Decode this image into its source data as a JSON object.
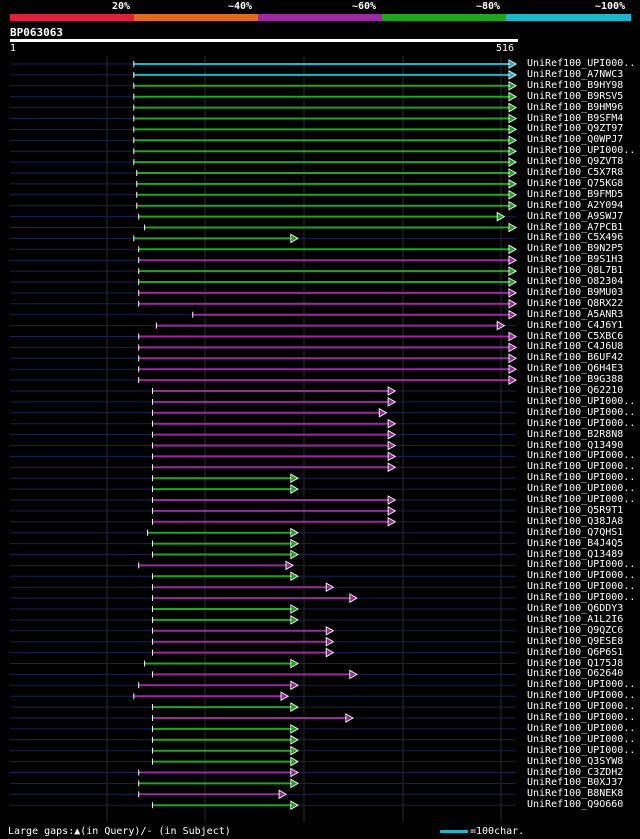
{
  "legend": {
    "labels": [
      "20%",
      "~40%",
      "~60%",
      "~80%",
      "~100%"
    ],
    "colors": [
      "#e0213c",
      "#e06a1e",
      "#9b2aa0",
      "#1fa51f",
      "#23b3cc"
    ]
  },
  "query": {
    "id": "BP063063",
    "start": "1",
    "end": "516",
    "length": 516
  },
  "colors": {
    "cyan": "#23b3cc",
    "green": "#1fa51f",
    "purple": "#9b2aa0",
    "grid": "#2a2a2a",
    "track": "#1b2150",
    "gap_marker": "#ffffff"
  },
  "hits": [
    {
      "label": "UniRef100_UPI000..",
      "color": "cyan",
      "start": 127,
      "end": 516
    },
    {
      "label": "UniRef100_A7NWC3",
      "color": "cyan",
      "start": 127,
      "end": 516
    },
    {
      "label": "UniRef100_B9HY98",
      "color": "green",
      "start": 127,
      "end": 516
    },
    {
      "label": "UniRef100_B9RSV5",
      "color": "green",
      "start": 127,
      "end": 516
    },
    {
      "label": "UniRef100_B9HM96",
      "color": "green",
      "start": 127,
      "end": 516
    },
    {
      "label": "UniRef100_B9SFM4",
      "color": "green",
      "start": 127,
      "end": 516
    },
    {
      "label": "UniRef100_Q9ZT97",
      "color": "green",
      "start": 127,
      "end": 516
    },
    {
      "label": "UniRef100_Q0WPJ7",
      "color": "green",
      "start": 127,
      "end": 516
    },
    {
      "label": "UniRef100_UPI000..",
      "color": "green",
      "start": 127,
      "end": 516
    },
    {
      "label": "UniRef100_Q9ZVT8",
      "color": "green",
      "start": 127,
      "end": 516
    },
    {
      "label": "UniRef100_C5X7R8",
      "color": "green",
      "start": 130,
      "end": 516
    },
    {
      "label": "UniRef100_Q75KG8",
      "color": "green",
      "start": 130,
      "end": 516
    },
    {
      "label": "UniRef100_B9FMD5",
      "color": "green",
      "start": 130,
      "end": 516
    },
    {
      "label": "UniRef100_A2Y094",
      "color": "green",
      "start": 130,
      "end": 516
    },
    {
      "label": "UniRef100_A9SWJ7",
      "color": "green",
      "start": 132,
      "end": 504
    },
    {
      "label": "UniRef100_A7PCB1",
      "color": "green",
      "start": 138,
      "end": 516
    },
    {
      "label": "UniRef100_C5X496",
      "color": "green",
      "start": 127,
      "end": 294
    },
    {
      "label": "UniRef100_B9N2P5",
      "color": "green",
      "start": 132,
      "end": 516
    },
    {
      "label": "UniRef100_B9S1H3",
      "color": "purple",
      "start": 132,
      "end": 516
    },
    {
      "label": "UniRef100_Q8L7B1",
      "color": "green",
      "start": 132,
      "end": 516
    },
    {
      "label": "UniRef100_O82304",
      "color": "green",
      "start": 132,
      "end": 516
    },
    {
      "label": "UniRef100_B9MU03",
      "color": "purple",
      "start": 132,
      "end": 516
    },
    {
      "label": "UniRef100_Q8RX22",
      "color": "purple",
      "start": 132,
      "end": 516
    },
    {
      "label": "UniRef100_A5ANR3",
      "color": "purple",
      "start": 187,
      "end": 516
    },
    {
      "label": "UniRef100_C4J6Y1",
      "color": "purple",
      "start": 150,
      "end": 504
    },
    {
      "label": "UniRef100_C5XBC6",
      "color": "purple",
      "start": 132,
      "end": 516
    },
    {
      "label": "UniRef100_C4J6U8",
      "color": "purple",
      "start": 132,
      "end": 516
    },
    {
      "label": "UniRef100_B6UF42",
      "color": "purple",
      "start": 132,
      "end": 516
    },
    {
      "label": "UniRef100_Q6H4E3",
      "color": "purple",
      "start": 132,
      "end": 516
    },
    {
      "label": "UniRef100_B9G388",
      "color": "purple",
      "start": 132,
      "end": 516
    },
    {
      "label": "UniRef100_Q62210",
      "color": "purple",
      "start": 146,
      "end": 393
    },
    {
      "label": "UniRef100_UPI000..",
      "color": "purple",
      "start": 146,
      "end": 393
    },
    {
      "label": "UniRef100_UPI000..",
      "color": "purple",
      "start": 146,
      "end": 384
    },
    {
      "label": "UniRef100_UPI000..",
      "color": "purple",
      "start": 146,
      "end": 393
    },
    {
      "label": "UniRef100_B2R8N8",
      "color": "purple",
      "start": 146,
      "end": 393
    },
    {
      "label": "UniRef100_Q13490",
      "color": "purple",
      "start": 146,
      "end": 393
    },
    {
      "label": "UniRef100_UPI000..",
      "color": "purple",
      "start": 146,
      "end": 393
    },
    {
      "label": "UniRef100_UPI000..",
      "color": "purple",
      "start": 146,
      "end": 393
    },
    {
      "label": "UniRef100_UPI000..",
      "color": "green",
      "start": 146,
      "end": 294
    },
    {
      "label": "UniRef100_UPI000..",
      "color": "green",
      "start": 146,
      "end": 294
    },
    {
      "label": "UniRef100_UPI000..",
      "color": "purple",
      "start": 146,
      "end": 393
    },
    {
      "label": "UniRef100_Q5R9T1",
      "color": "purple",
      "start": 146,
      "end": 393
    },
    {
      "label": "UniRef100_Q38JA8",
      "color": "purple",
      "start": 146,
      "end": 393
    },
    {
      "label": "UniRef100_Q7QHS1",
      "color": "green",
      "start": 141,
      "end": 294
    },
    {
      "label": "UniRef100_B4J4Q5",
      "color": "green",
      "start": 146,
      "end": 294
    },
    {
      "label": "UniRef100_Q13489",
      "color": "green",
      "start": 146,
      "end": 294
    },
    {
      "label": "UniRef100_UPI000..",
      "color": "purple",
      "start": 132,
      "end": 289
    },
    {
      "label": "UniRef100_UPI000..",
      "color": "green",
      "start": 146,
      "end": 294
    },
    {
      "label": "UniRef100_UPI000..",
      "color": "purple",
      "start": 146,
      "end": 330
    },
    {
      "label": "UniRef100_UPI000..",
      "color": "purple",
      "start": 146,
      "end": 354
    },
    {
      "label": "UniRef100_Q6DDY3",
      "color": "green",
      "start": 146,
      "end": 294
    },
    {
      "label": "UniRef100_A1L2I6",
      "color": "green",
      "start": 146,
      "end": 294
    },
    {
      "label": "UniRef100_Q9QZC6",
      "color": "purple",
      "start": 146,
      "end": 330
    },
    {
      "label": "UniRef100_Q9ESE8",
      "color": "purple",
      "start": 146,
      "end": 330
    },
    {
      "label": "UniRef100_Q6P6S1",
      "color": "purple",
      "start": 146,
      "end": 330
    },
    {
      "label": "UniRef100_Q175J8",
      "color": "green",
      "start": 138,
      "end": 294
    },
    {
      "label": "UniRef100_O62640",
      "color": "purple",
      "start": 146,
      "end": 354
    },
    {
      "label": "UniRef100_UPI000..",
      "color": "purple",
      "start": 132,
      "end": 294
    },
    {
      "label": "UniRef100_UPI000..",
      "color": "purple",
      "start": 127,
      "end": 284
    },
    {
      "label": "UniRef100_UPI000..",
      "color": "green",
      "start": 146,
      "end": 294
    },
    {
      "label": "UniRef100_UPI000..",
      "color": "purple",
      "start": 146,
      "end": 350
    },
    {
      "label": "UniRef100_UPI000..",
      "color": "green",
      "start": 146,
      "end": 294
    },
    {
      "label": "UniRef100_UPI000..",
      "color": "green",
      "start": 146,
      "end": 294
    },
    {
      "label": "UniRef100_UPI000..",
      "color": "green",
      "start": 146,
      "end": 294
    },
    {
      "label": "UniRef100_Q3SYW8",
      "color": "green",
      "start": 146,
      "end": 294
    },
    {
      "label": "UniRef100_C3ZDH2",
      "color": "purple",
      "start": 132,
      "end": 294
    },
    {
      "label": "UniRef100_B0XJ37",
      "color": "green",
      "start": 132,
      "end": 294
    },
    {
      "label": "UniRef100_B8NEK8",
      "color": "purple",
      "start": 132,
      "end": 282
    },
    {
      "label": "UniRef100_Q9O660",
      "color": "green",
      "start": 146,
      "end": 294
    }
  ],
  "footer": {
    "large_gaps": "Large gaps:▲(in Query)/- (in Subject)",
    "scale": "=100char."
  }
}
